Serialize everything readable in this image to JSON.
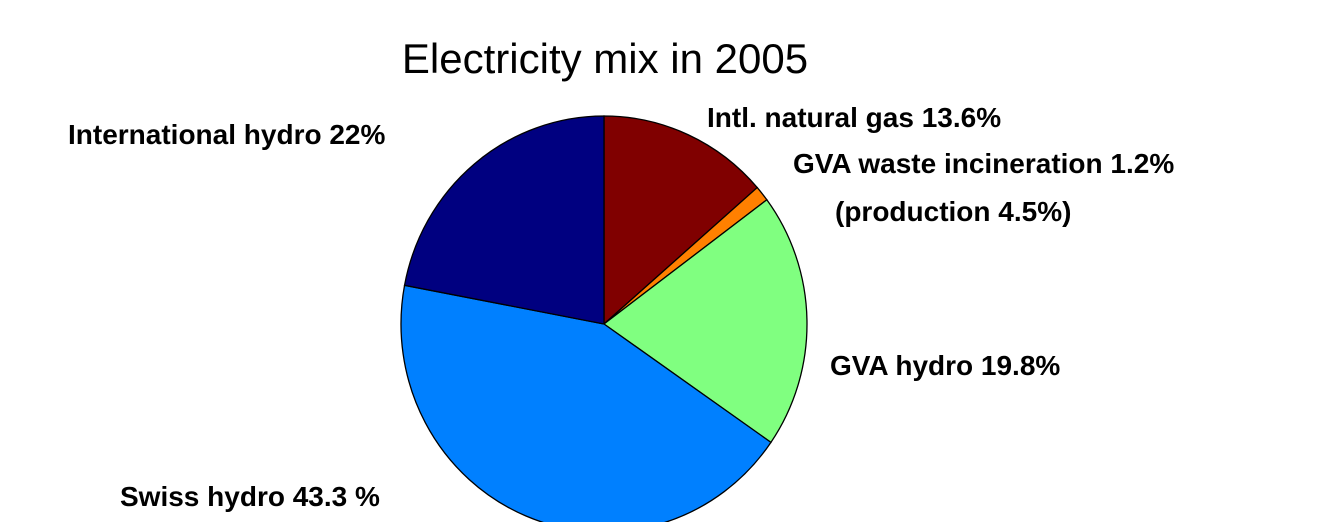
{
  "chart_data": {
    "type": "pie",
    "title": "Electricity mix in 2005",
    "slices": [
      {
        "label": "Intl. natural gas 13.6%",
        "value": 13.6,
        "color": "#800000"
      },
      {
        "label": "GVA waste incineration 1.2%",
        "sublabel": "(production 4.5%)",
        "value": 1.2,
        "color": "#ff8000"
      },
      {
        "label": "GVA hydro 19.8%",
        "value": 19.8,
        "color": "#80ff80"
      },
      {
        "label": "Swiss hydro 43.3 %",
        "value": 43.3,
        "color": "#0080ff"
      },
      {
        "label": "International hydro 22%",
        "value": 22.0,
        "color": "#000080"
      }
    ],
    "start_angle_deg": 90,
    "direction": "clockwise",
    "edge_color": "#000000"
  }
}
